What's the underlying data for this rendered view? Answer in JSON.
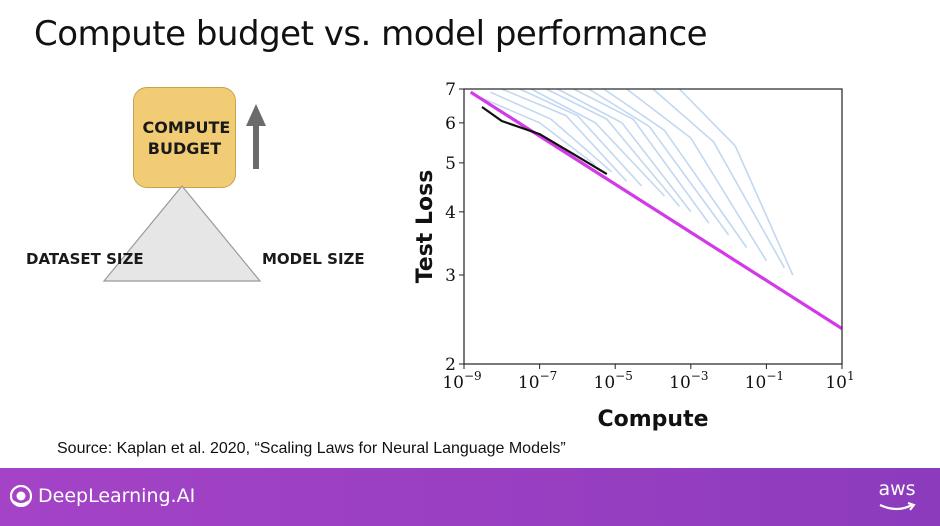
{
  "slide": {
    "title": "Compute budget vs. model performance",
    "compute_budget_label": "COMPUTE BUDGET",
    "dataset_size_label": "DATASET SIZE",
    "model_size_label": "MODEL SIZE",
    "source": "Source: Kaplan et al. 2020, “Scaling Laws for Neural Language Models”"
  },
  "footer": {
    "brand": "DeepLearning.AI",
    "partner": "aws"
  },
  "colors": {
    "budget_fill": "#f1cc74",
    "triangle_fill": "#e6e6e6",
    "frontier_line": "#d23ae8",
    "curve_color": "#8fb8e6",
    "footer": "#9a3fc2"
  },
  "chart_data": {
    "type": "line",
    "xlabel": "Compute",
    "ylabel": "Test Loss",
    "xscale": "log",
    "yscale": "log",
    "xlim": [
      1e-09,
      10
    ],
    "ylim": [
      2,
      7
    ],
    "x_ticks": [
      {
        "base": "10",
        "exp": "−9",
        "value": 1e-09
      },
      {
        "base": "10",
        "exp": "−7",
        "value": 1e-07
      },
      {
        "base": "10",
        "exp": "−5",
        "value": 1e-05
      },
      {
        "base": "10",
        "exp": "−3",
        "value": 0.001
      },
      {
        "base": "10",
        "exp": "−1",
        "value": 0.1
      },
      {
        "base": "10",
        "exp": "1",
        "value": 10
      }
    ],
    "y_ticks": [
      {
        "label": "2",
        "value": 2
      },
      {
        "label": "3",
        "value": 3
      },
      {
        "label": "4",
        "value": 4
      },
      {
        "label": "5",
        "value": 5
      },
      {
        "label": "6",
        "value": 6
      },
      {
        "label": "7",
        "value": 7
      }
    ],
    "series": [
      {
        "role": "frontier",
        "color": "#d23ae8",
        "x": [
          1.5e-09,
          10
        ],
        "y": [
          6.9,
          2.35
        ]
      },
      {
        "role": "best-run",
        "color": "#111111",
        "x": [
          3e-09,
          1e-08,
          1e-07,
          1e-06,
          6e-06
        ],
        "y": [
          6.45,
          6.05,
          5.7,
          5.15,
          4.75
        ]
      }
    ],
    "curves": [
      {
        "x": [
          2e-09,
          1e-07,
          3e-06
        ],
        "y": [
          6.8,
          6.0,
          4.95
        ]
      },
      {
        "x": [
          5e-09,
          2e-07,
          8e-06
        ],
        "y": [
          6.9,
          6.1,
          4.8
        ]
      },
      {
        "x": [
          1e-08,
          5e-07,
          2e-05
        ],
        "y": [
          7.0,
          6.2,
          4.6
        ]
      },
      {
        "x": [
          3e-08,
          1e-06,
          5e-05
        ],
        "y": [
          7.0,
          6.2,
          4.5
        ]
      },
      {
        "x": [
          6e-08,
          3e-06,
          0.0002
        ],
        "y": [
          7.0,
          6.0,
          4.3
        ]
      },
      {
        "x": [
          1.5e-07,
          6e-06,
          0.0005
        ],
        "y": [
          7.0,
          6.1,
          4.1
        ]
      },
      {
        "x": [
          3e-07,
          1.5e-05,
          0.001
        ],
        "y": [
          7.0,
          6.0,
          4.0
        ]
      },
      {
        "x": [
          8e-07,
          3e-05,
          0.003
        ],
        "y": [
          7.0,
          6.1,
          3.8
        ]
      },
      {
        "x": [
          2e-06,
          8e-05,
          0.01
        ],
        "y": [
          7.0,
          5.9,
          3.6
        ]
      },
      {
        "x": [
          5e-06,
          0.0002,
          0.03
        ],
        "y": [
          7.0,
          5.8,
          3.4
        ]
      },
      {
        "x": [
          2e-05,
          0.001,
          0.1
        ],
        "y": [
          7.0,
          5.6,
          3.2
        ]
      },
      {
        "x": [
          0.0001,
          0.004,
          0.3
        ],
        "y": [
          7.0,
          5.5,
          3.1
        ]
      },
      {
        "x": [
          0.0005,
          0.015,
          0.5
        ],
        "y": [
          7.0,
          5.4,
          3.0
        ]
      }
    ]
  }
}
